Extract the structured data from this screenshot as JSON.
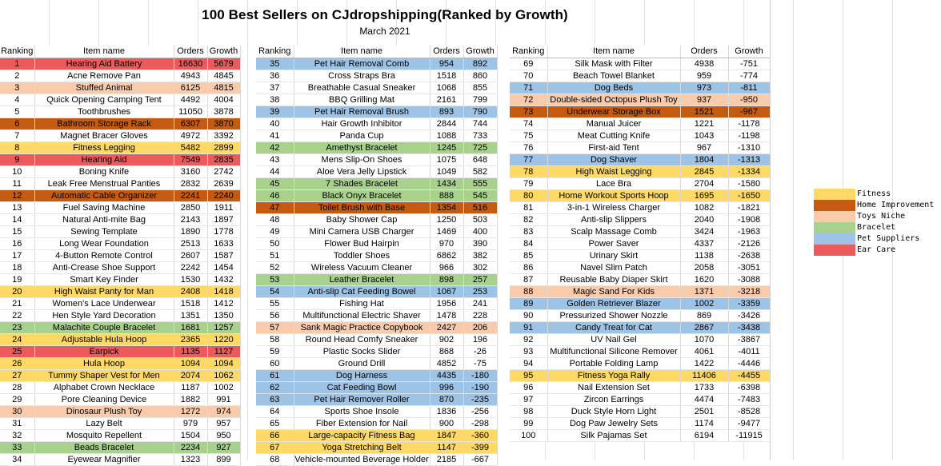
{
  "title": "100 Best Sellers on CJdropshipping(Ranked by Growth)",
  "subtitle": "March 2021",
  "headers": {
    "ranking": "Ranking",
    "item_name": "Item name",
    "orders": "Orders",
    "growth": "Growth"
  },
  "legend": [
    {
      "label": "Fitness",
      "color": "#ffd966"
    },
    {
      "label": "Home Improvement",
      "color": "#c55a11"
    },
    {
      "label": "Toys Niche",
      "color": "#f8cbad"
    },
    {
      "label": "Bracelet",
      "color": "#a9d18e"
    },
    {
      "label": "Pet Suppliers",
      "color": "#9dc3e6"
    },
    {
      "label": "Ear Care",
      "color": "#eb5b5b"
    }
  ],
  "columns": [
    [
      [
        "1",
        "Hearing Aid Battery",
        "16630",
        "5679",
        "ear"
      ],
      [
        "2",
        "Acne Remove Pan",
        "4943",
        "4845",
        ""
      ],
      [
        "3",
        "Stuffed Animal",
        "6125",
        "4815",
        "toys"
      ],
      [
        "4",
        "Quick Opening Camping Tent",
        "4492",
        "4004",
        ""
      ],
      [
        "5",
        "Toothbrushes",
        "11050",
        "3878",
        ""
      ],
      [
        "6",
        "Bathroom Storage Rack",
        "6307",
        "3870",
        "home"
      ],
      [
        "7",
        "Magnet Bracer Gloves",
        "4972",
        "3392",
        ""
      ],
      [
        "8",
        "Fitness Legging",
        "5482",
        "2899",
        "fitness"
      ],
      [
        "9",
        "Hearing Aid",
        "7549",
        "2835",
        "ear"
      ],
      [
        "10",
        "Boning Knife",
        "3160",
        "2742",
        ""
      ],
      [
        "11",
        "Leak Free Menstrual Panties",
        "2832",
        "2639",
        ""
      ],
      [
        "12",
        "Automatic Cable Organizer",
        "2241",
        "2240",
        "home"
      ],
      [
        "13",
        "Fuel Saving Machine",
        "2850",
        "1911",
        ""
      ],
      [
        "14",
        "Natural Anti-mite Bag",
        "2143",
        "1897",
        ""
      ],
      [
        "15",
        "Sewing Template",
        "1890",
        "1778",
        ""
      ],
      [
        "16",
        "Long Wear Foundation",
        "2513",
        "1633",
        ""
      ],
      [
        "17",
        "4-Button Remote Control",
        "2607",
        "1587",
        ""
      ],
      [
        "18",
        "Anti-Crease Shoe Support",
        "2242",
        "1454",
        ""
      ],
      [
        "19",
        "Smart Key Finder",
        "1530",
        "1432",
        ""
      ],
      [
        "20",
        "High Waist Panty for Man",
        "2408",
        "1418",
        "fitness"
      ],
      [
        "21",
        "Women's Lace Underwear",
        "1518",
        "1412",
        ""
      ],
      [
        "22",
        "Hen Style Yard Decoration",
        "1351",
        "1350",
        ""
      ],
      [
        "23",
        "Malachite Couple Bracelet",
        "1681",
        "1257",
        "bracelet"
      ],
      [
        "24",
        "Adjustable Hula Hoop",
        "2365",
        "1220",
        "fitness"
      ],
      [
        "25",
        "Earpick",
        "1135",
        "1127",
        "ear"
      ],
      [
        "26",
        "Hula Hoop",
        "1094",
        "1094",
        "fitness"
      ],
      [
        "27",
        "Tummy Shaper Vest for Men",
        "2074",
        "1062",
        "fitness"
      ],
      [
        "28",
        "Alphabet Crown Necklace",
        "1187",
        "1002",
        ""
      ],
      [
        "29",
        "Pore  Cleaning Device",
        "1882",
        "991",
        ""
      ],
      [
        "30",
        "Dinosaur Plush Toy",
        "1272",
        "974",
        "toys"
      ],
      [
        "31",
        "Lazy Belt",
        "979",
        "957",
        ""
      ],
      [
        "32",
        "Mosquito Repellent",
        "1504",
        "950",
        ""
      ],
      [
        "33",
        "Beads Bracelet",
        "2234",
        "927",
        "bracelet"
      ],
      [
        "34",
        "Eyewear Magnifier",
        "1323",
        "899",
        ""
      ]
    ],
    [
      [
        "35",
        "Pet Hair Removal Comb",
        "954",
        "892",
        "pet"
      ],
      [
        "36",
        "Cross Straps Bra",
        "1518",
        "860",
        ""
      ],
      [
        "37",
        "Breathable Casual Sneaker",
        "1068",
        "855",
        ""
      ],
      [
        "38",
        "BBQ Grilling Mat",
        "2161",
        "799",
        ""
      ],
      [
        "39",
        "Pet Hair Removal Brush",
        "893",
        "790",
        "pet"
      ],
      [
        "40",
        "Hair Growth Inhibitor",
        "2844",
        "744",
        ""
      ],
      [
        "41",
        "Panda Cup",
        "1088",
        "733",
        ""
      ],
      [
        "42",
        "Amethyst Bracelet",
        "1245",
        "725",
        "bracelet"
      ],
      [
        "43",
        "Mens Slip-On Shoes",
        "1075",
        "648",
        ""
      ],
      [
        "44",
        "Aloe Vera Jelly Lipstick",
        "1049",
        "582",
        ""
      ],
      [
        "45",
        "7 Shades Bracelet",
        "1434",
        "555",
        "bracelet"
      ],
      [
        "46",
        "Black Onyx Bracelet",
        "888",
        "545",
        "bracelet"
      ],
      [
        "47",
        "Toilet Brush with Base",
        "1354",
        "516",
        "home"
      ],
      [
        "48",
        "Baby Shower Cap",
        "1250",
        "503",
        ""
      ],
      [
        "49",
        "Mini Camera USB Charger",
        "1469",
        "400",
        ""
      ],
      [
        "50",
        "Flower Bud Hairpin",
        "970",
        "390",
        ""
      ],
      [
        "51",
        "Toddler Shoes",
        "6862",
        "382",
        ""
      ],
      [
        "52",
        "Wireless Vacuum Cleaner",
        "966",
        "302",
        ""
      ],
      [
        "53",
        "Leather Bracelet",
        "898",
        "257",
        "bracelet"
      ],
      [
        "54",
        "Anti-slip Cat Feeding Bowel",
        "1067",
        "253",
        "pet"
      ],
      [
        "55",
        "Fishing Hat",
        "1956",
        "241",
        ""
      ],
      [
        "56",
        "Multifunctional Electric Shaver",
        "1478",
        "228",
        ""
      ],
      [
        "57",
        "Sank Magic Practice Copybook",
        "2427",
        "206",
        "toys"
      ],
      [
        "58",
        "Round Head Comfy Sneaker",
        "902",
        "196",
        ""
      ],
      [
        "59",
        "Plastic Socks Slider",
        "868",
        "-26",
        ""
      ],
      [
        "60",
        "Ground Drill",
        "4852",
        "-75",
        ""
      ],
      [
        "61",
        "Dog Harness",
        "4435",
        "-180",
        "pet"
      ],
      [
        "62",
        "Cat Feeding Bowl",
        "996",
        "-190",
        "pet"
      ],
      [
        "63",
        "Pet Hair Remover Roller",
        "870",
        "-235",
        "pet"
      ],
      [
        "64",
        "Sports Shoe Insole",
        "1836",
        "-256",
        ""
      ],
      [
        "65",
        "Fiber Extension for Nail",
        "900",
        "-298",
        ""
      ],
      [
        "66",
        "Large-capacity Fitness Bag",
        "1847",
        "-360",
        "fitness"
      ],
      [
        "67",
        "Yoga Stretching Belt",
        "1147",
        "-399",
        "fitness"
      ],
      [
        "68",
        "Vehicle-mounted Beverage Holder",
        "2185",
        "-667",
        ""
      ]
    ],
    [
      [
        "69",
        "Silk Mask with Filter",
        "4938",
        "-751",
        ""
      ],
      [
        "70",
        "Beach Towel Blanket",
        "959",
        "-774",
        ""
      ],
      [
        "71",
        "Dog Beds",
        "973",
        "-811",
        "pet"
      ],
      [
        "72",
        "Double-sided Octopus Plush Toy",
        "937",
        "-950",
        "toys"
      ],
      [
        "73",
        "Underwear Storage Box",
        "1521",
        "-967",
        "home"
      ],
      [
        "74",
        "Manual Juicer",
        "1221",
        "-1178",
        ""
      ],
      [
        "75",
        "Meat Cutting Knife",
        "1043",
        "-1198",
        ""
      ],
      [
        "76",
        "First-aid Tent",
        "967",
        "-1310",
        ""
      ],
      [
        "77",
        "Dog Shaver",
        "1804",
        "-1313",
        "pet"
      ],
      [
        "78",
        "High Waist Legging",
        "2845",
        "-1334",
        "fitness"
      ],
      [
        "79",
        "Lace Bra",
        "2704",
        "-1580",
        ""
      ],
      [
        "80",
        "Home Workout Sports Hoop",
        "1695",
        "-1650",
        "fitness"
      ],
      [
        "81",
        "3-in-1 Wireless Charger",
        "1082",
        "-1821",
        ""
      ],
      [
        "82",
        "Anti-slip Slippers",
        "2040",
        "-1908",
        ""
      ],
      [
        "83",
        "Scalp Massage Comb",
        "3424",
        "-1963",
        ""
      ],
      [
        "84",
        "Power Saver",
        "4337",
        "-2126",
        ""
      ],
      [
        "85",
        "Urinary Skirt",
        "1138",
        "-2638",
        ""
      ],
      [
        "86",
        "Navel Slim Patch",
        "2058",
        "-3051",
        ""
      ],
      [
        "87",
        "Reusable Baby Diaper Skirt",
        "1620",
        "-3088",
        ""
      ],
      [
        "88",
        "Magic Sand For Kids",
        "1371",
        "-3218",
        "toys"
      ],
      [
        "89",
        "Golden Retriever Blazer",
        "1002",
        "-3359",
        "pet"
      ],
      [
        "90",
        "Pressurized Shower Nozzle",
        "869",
        "-3426",
        ""
      ],
      [
        "91",
        "Candy Treat for Cat",
        "2867",
        "-3438",
        "pet"
      ],
      [
        "92",
        "UV Nail Gel",
        "1070",
        "-3867",
        ""
      ],
      [
        "93",
        "Multifunctional Silicone Remover",
        "4061",
        "-4011",
        ""
      ],
      [
        "94",
        "Portable Folding Lamp",
        "1422",
        "-4446",
        ""
      ],
      [
        "95",
        "Fitness Yoga Rally",
        "11406",
        "-4455",
        "fitness"
      ],
      [
        "96",
        "Nail Extension Set",
        "1733",
        "-6398",
        ""
      ],
      [
        "97",
        "Zircon Earrings",
        "4474",
        "-7483",
        ""
      ],
      [
        "98",
        "Duck Style Horn Light",
        "2501",
        "-8528",
        ""
      ],
      [
        "99",
        "Dog Paw  Jewelry Sets",
        "1174",
        "-9477",
        ""
      ],
      [
        "100",
        "Silk Pajamas Set",
        "6194",
        "-11915",
        ""
      ]
    ]
  ]
}
